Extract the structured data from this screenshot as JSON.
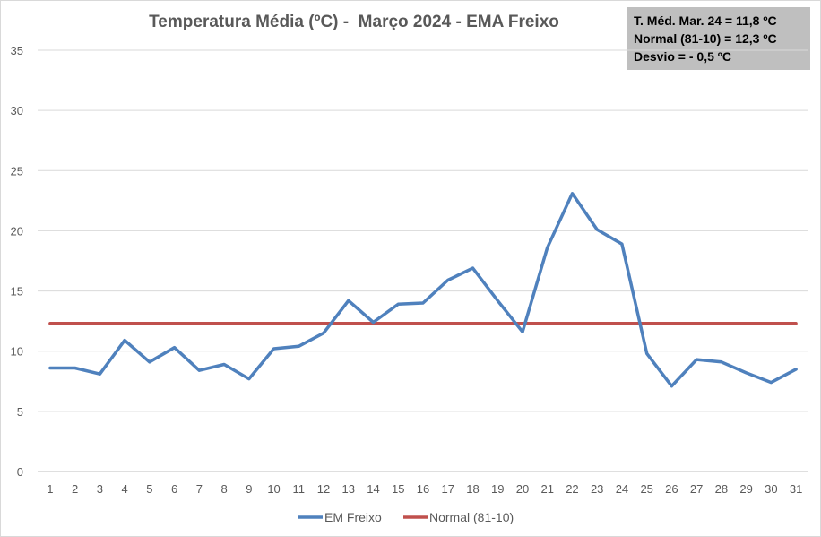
{
  "chart_data": {
    "type": "line",
    "title": "Temperatura Média (ºC) -  Março 2024 - EMA Freixo",
    "categories": [
      "1",
      "2",
      "3",
      "4",
      "5",
      "6",
      "7",
      "8",
      "9",
      "10",
      "11",
      "12",
      "13",
      "14",
      "15",
      "16",
      "17",
      "18",
      "19",
      "20",
      "21",
      "22",
      "23",
      "24",
      "25",
      "26",
      "27",
      "28",
      "29",
      "30",
      "31"
    ],
    "series": [
      {
        "name": "EM Freixo",
        "color": "#4f81bd",
        "values": [
          8.6,
          8.6,
          8.1,
          10.9,
          9.1,
          10.3,
          8.4,
          8.9,
          7.7,
          10.2,
          10.4,
          11.5,
          14.2,
          12.4,
          13.9,
          14.0,
          15.9,
          16.9,
          14.2,
          11.6,
          18.6,
          23.1,
          20.1,
          18.9,
          9.8,
          7.1,
          9.3,
          9.1,
          8.2,
          7.4,
          8.5
        ]
      },
      {
        "name": "Normal (81-10)",
        "color": "#c0504d",
        "values": [
          12.3,
          12.3,
          12.3,
          12.3,
          12.3,
          12.3,
          12.3,
          12.3,
          12.3,
          12.3,
          12.3,
          12.3,
          12.3,
          12.3,
          12.3,
          12.3,
          12.3,
          12.3,
          12.3,
          12.3,
          12.3,
          12.3,
          12.3,
          12.3,
          12.3,
          12.3,
          12.3,
          12.3,
          12.3,
          12.3,
          12.3
        ]
      }
    ],
    "ylim": [
      0,
      35
    ],
    "yticks": [
      0,
      5,
      10,
      15,
      20,
      25,
      30,
      35
    ],
    "grid": true,
    "legend_position": "bottom",
    "annotation": [
      "T. Méd. Mar. 24 = 11,8 ºC",
      "Normal (81-10) = 12,3 ºC",
      "Desvio = - 0,5 ºC"
    ]
  }
}
